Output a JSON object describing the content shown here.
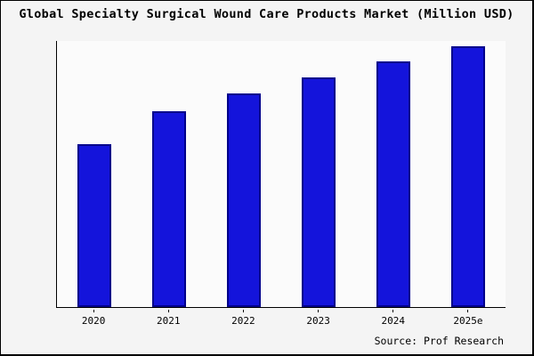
{
  "chart_data": {
    "type": "bar",
    "title": "Global Specialty Surgical Wound Care Products Market (Million USD)",
    "categories": [
      "2020",
      "2021",
      "2022",
      "2023",
      "2024",
      "2025e"
    ],
    "values": [
      62.3,
      75.1,
      81.8,
      87.9,
      94.3,
      100
    ],
    "values_note": "relative market size index estimated from bar heights, 2025e = 100; y-axis unlabeled in source image",
    "xlabel": "",
    "ylabel": "",
    "ylim": [
      0,
      102
    ],
    "grid": false,
    "legend": "none",
    "bar_fill": "#1414db",
    "bar_stroke": "#00008b",
    "source": "Source: Prof Research"
  }
}
